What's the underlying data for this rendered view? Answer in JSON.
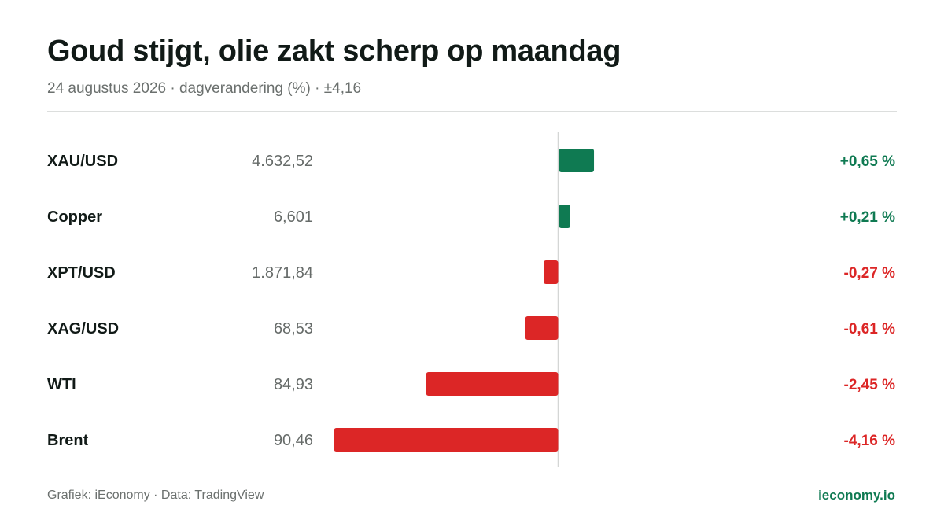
{
  "header": {
    "title": "Goud stijgt, olie zakt scherp op maandag",
    "subtitle": "24 augustus 2026 · dagverandering (%) · ±4,16"
  },
  "footer": {
    "source": "Grafiek: iEconomy · Data: TradingView",
    "brand": "ieconomy.io"
  },
  "colors": {
    "positive": "#0f7a52",
    "negative": "#dc2626",
    "label": "#111a17",
    "price": "#666b69",
    "axis": "#d4d6d5"
  },
  "chart_data": {
    "type": "bar",
    "orientation": "horizontal",
    "xlim": [
      -4.16,
      4.16
    ],
    "categories": [
      "XAU/USD",
      "Copper",
      "XPT/USD",
      "XAG/USD",
      "WTI",
      "Brent"
    ],
    "prices": [
      "4.632,52",
      "6,601",
      "1.871,84",
      "68,53",
      "84,93",
      "90,46"
    ],
    "values": [
      0.65,
      0.21,
      -0.27,
      -0.61,
      -2.45,
      -4.16
    ],
    "value_labels": [
      "+0,65 %",
      "+0,21 %",
      "-0,27 %",
      "-0,61 %",
      "-2,45 %",
      "-4,16 %"
    ]
  }
}
